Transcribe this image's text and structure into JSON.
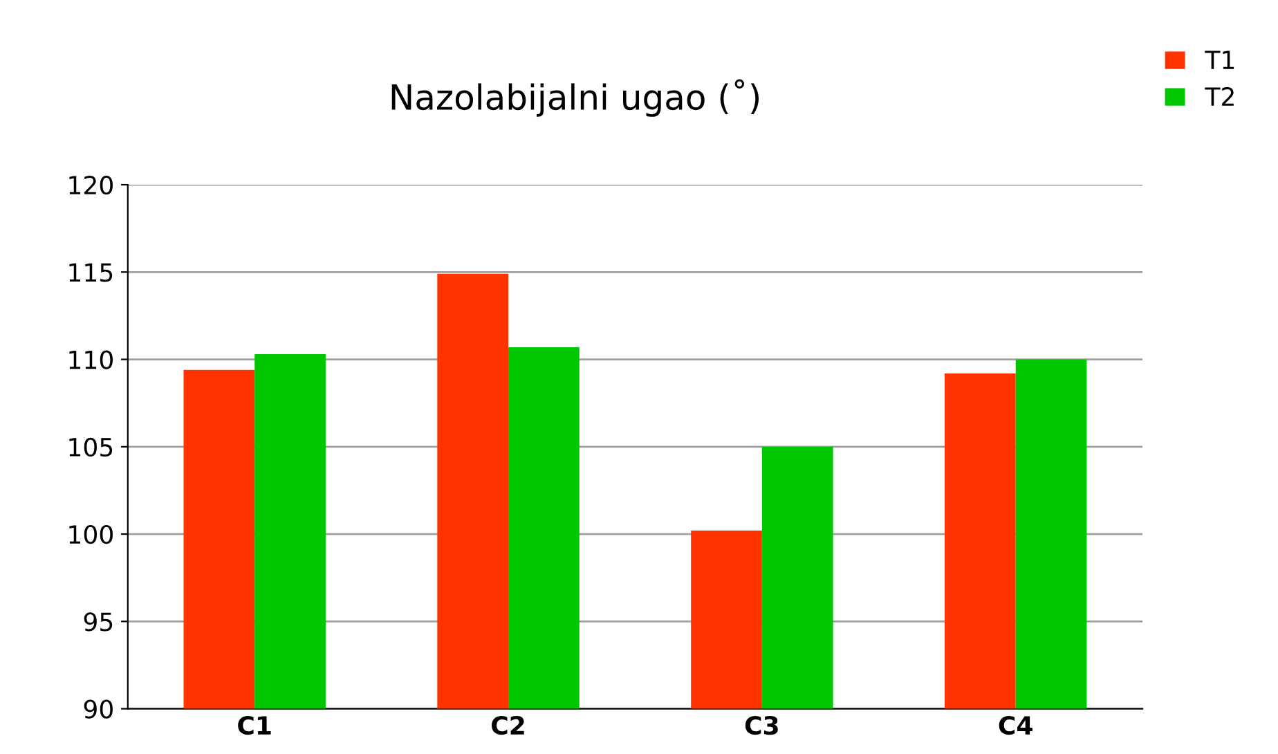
{
  "chart_data": {
    "type": "bar",
    "title": "Nazolabijalni ugao (˚)",
    "categories": [
      "C1",
      "C2",
      "C3",
      "C4"
    ],
    "series": [
      {
        "name": "T1",
        "color": "#ff3300",
        "values": [
          109.4,
          114.9,
          100.2,
          109.2
        ]
      },
      {
        "name": "T2",
        "color": "#00c800",
        "values": [
          110.3,
          110.7,
          105.0,
          110.0
        ]
      }
    ],
    "ylim": [
      90,
      120
    ],
    "yticks": [
      90,
      95,
      100,
      105,
      110,
      115,
      120
    ],
    "grid": "y",
    "legend": "top right"
  }
}
